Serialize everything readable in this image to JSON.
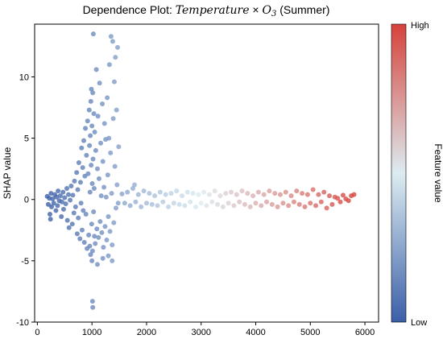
{
  "chart_data": {
    "type": "scatter",
    "title": {
      "prefix": "Dependence Plot: ",
      "math_a": "Temperature",
      "times": " × ",
      "math_b": "O",
      "math_b_sub": "3",
      "suffix": " (Summer)"
    },
    "xlabel": "",
    "ylabel": "SHAP value",
    "xlim": [
      -50,
      6250
    ],
    "ylim": [
      -10,
      14.3
    ],
    "xticks": [
      0,
      1000,
      2000,
      3000,
      4000,
      5000,
      6000
    ],
    "yticks": [
      -10,
      -5,
      0,
      5,
      10
    ],
    "grid": false,
    "colorbar": {
      "label": "Feature value",
      "high_label": "High",
      "low_label": "Low",
      "colormap": [
        "#3b5fa8",
        "#dcecf1",
        "#d6423a"
      ]
    },
    "point_color_encodes": "feature value (low = blue, high = red)",
    "marker_color_alpha": 0.8,
    "points": [
      [
        180,
        0.25
      ],
      [
        200,
        -0.4
      ],
      [
        220,
        0.1
      ],
      [
        230,
        -1.2
      ],
      [
        240,
        -1.6
      ],
      [
        250,
        0.5
      ],
      [
        260,
        -0.6
      ],
      [
        280,
        0.05
      ],
      [
        300,
        -0.3
      ],
      [
        320,
        0.4
      ],
      [
        340,
        -0.9
      ],
      [
        350,
        0.2
      ],
      [
        370,
        -0.5
      ],
      [
        380,
        0.7
      ],
      [
        400,
        -0.1
      ],
      [
        420,
        0.3
      ],
      [
        440,
        -1.4
      ],
      [
        450,
        -0.2
      ],
      [
        470,
        0.6
      ],
      [
        480,
        -0.8
      ],
      [
        500,
        0.15
      ],
      [
        520,
        -0.35
      ],
      [
        540,
        0.9
      ],
      [
        550,
        -1.7
      ],
      [
        570,
        0.4
      ],
      [
        580,
        -2.3
      ],
      [
        600,
        -0.05
      ],
      [
        620,
        1.1
      ],
      [
        640,
        -2.0
      ],
      [
        650,
        0.35
      ],
      [
        670,
        -1.1
      ],
      [
        680,
        1.5
      ],
      [
        700,
        -0.6
      ],
      [
        720,
        2.2
      ],
      [
        730,
        -2.8
      ],
      [
        740,
        0.8
      ],
      [
        750,
        -1.5
      ],
      [
        760,
        3.0
      ],
      [
        780,
        -3.2
      ],
      [
        790,
        1.4
      ],
      [
        800,
        -0.3
      ],
      [
        810,
        4.2
      ],
      [
        820,
        -2.5
      ],
      [
        830,
        2.6
      ],
      [
        840,
        -0.9
      ],
      [
        850,
        4.8
      ],
      [
        860,
        -3.5
      ],
      [
        870,
        1.9
      ],
      [
        880,
        5.8
      ],
      [
        890,
        -1.2
      ],
      [
        900,
        3.6
      ],
      [
        910,
        -4.0
      ],
      [
        920,
        6.4
      ],
      [
        930,
        2.1
      ],
      [
        940,
        -2.9
      ],
      [
        950,
        7.3
      ],
      [
        955,
        4.4
      ],
      [
        960,
        -3.8
      ],
      [
        965,
        0.6
      ],
      [
        970,
        5.2
      ],
      [
        975,
        -4.5
      ],
      [
        980,
        8.0
      ],
      [
        985,
        2.8
      ],
      [
        990,
        9.0
      ],
      [
        995,
        -2.0
      ],
      [
        1000,
        6.0
      ],
      [
        1005,
        1.3
      ],
      [
        1010,
        -4.2
      ],
      [
        1015,
        8.7
      ],
      [
        1020,
        3.3
      ],
      [
        1025,
        13.5
      ],
      [
        1030,
        -1.0
      ],
      [
        1035,
        7.0
      ],
      [
        1040,
        0.9
      ],
      [
        1045,
        -3.0
      ],
      [
        1050,
        5.5
      ],
      [
        1060,
        -3.6
      ],
      [
        1070,
        4.0
      ],
      [
        1080,
        10.6
      ],
      [
        1090,
        -2.4
      ],
      [
        1100,
        2.5
      ],
      [
        1110,
        6.8
      ],
      [
        1120,
        -3.1
      ],
      [
        1130,
        1.7
      ],
      [
        1140,
        9.5
      ],
      [
        1150,
        -1.8
      ],
      [
        1160,
        4.6
      ],
      [
        1170,
        0.3
      ],
      [
        1180,
        -2.7
      ],
      [
        1190,
        7.8
      ],
      [
        1200,
        3.1
      ],
      [
        1210,
        -3.9
      ],
      [
        1220,
        1.0
      ],
      [
        1230,
        6.2
      ],
      [
        1240,
        -2.2
      ],
      [
        1250,
        4.9
      ],
      [
        1260,
        0.2
      ],
      [
        1270,
        -3.3
      ],
      [
        1280,
        8.3
      ],
      [
        1290,
        2.0
      ],
      [
        1300,
        -1.4
      ],
      [
        1310,
        5.0
      ],
      [
        1320,
        11.0
      ],
      [
        1330,
        -2.6
      ],
      [
        1340,
        3.8
      ],
      [
        1350,
        13.3
      ],
      [
        1360,
        0.5
      ],
      [
        1370,
        -3.7
      ],
      [
        1380,
        12.9
      ],
      [
        1390,
        6.6
      ],
      [
        1400,
        -1.9
      ],
      [
        1410,
        9.6
      ],
      [
        1420,
        2.7
      ],
      [
        1430,
        11.6
      ],
      [
        1440,
        -0.7
      ],
      [
        1450,
        7.3
      ],
      [
        1460,
        1.2
      ],
      [
        1470,
        12.4
      ],
      [
        1480,
        -0.3
      ],
      [
        1490,
        4.3
      ],
      [
        1010,
        -8.3
      ],
      [
        1015,
        -8.8
      ],
      [
        1000,
        -5.0
      ],
      [
        1100,
        -5.3
      ],
      [
        1200,
        -4.8
      ],
      [
        1300,
        -4.6
      ],
      [
        1370,
        -5.0
      ],
      [
        1550,
        0.45
      ],
      [
        1600,
        -0.3
      ],
      [
        1650,
        0.6
      ],
      [
        1700,
        -0.5
      ],
      [
        1750,
        0.9
      ],
      [
        1780,
        1.2
      ],
      [
        1800,
        -0.2
      ],
      [
        1850,
        0.4
      ],
      [
        1900,
        -0.6
      ],
      [
        1950,
        0.7
      ],
      [
        2000,
        -0.3
      ],
      [
        2050,
        0.5
      ],
      [
        2100,
        -0.4
      ],
      [
        2150,
        0.3
      ],
      [
        2200,
        -0.5
      ],
      [
        2250,
        0.6
      ],
      [
        2300,
        -0.2
      ],
      [
        2350,
        0.4
      ],
      [
        2400,
        -0.6
      ],
      [
        2450,
        0.5
      ],
      [
        2500,
        -0.3
      ],
      [
        2550,
        0.7
      ],
      [
        2600,
        -0.4
      ],
      [
        2650,
        0.3
      ],
      [
        2700,
        -0.5
      ],
      [
        2750,
        0.6
      ],
      [
        2800,
        -0.2
      ],
      [
        2850,
        0.5
      ],
      [
        2900,
        -0.6
      ],
      [
        2950,
        0.4
      ],
      [
        3000,
        -0.3
      ],
      [
        3050,
        0.6
      ],
      [
        3100,
        -0.5
      ],
      [
        3150,
        0.4
      ],
      [
        3200,
        -0.2
      ],
      [
        3250,
        0.7
      ],
      [
        3300,
        -0.4
      ],
      [
        3350,
        0.3
      ],
      [
        3400,
        -0.6
      ],
      [
        3450,
        0.5
      ],
      [
        3500,
        -0.3
      ],
      [
        3550,
        0.6
      ],
      [
        3600,
        -0.5
      ],
      [
        3650,
        0.4
      ],
      [
        3700,
        -0.2
      ],
      [
        3750,
        0.7
      ],
      [
        3800,
        -0.4
      ],
      [
        3850,
        0.5
      ],
      [
        3900,
        -0.6
      ],
      [
        3950,
        0.3
      ],
      [
        4000,
        -0.3
      ],
      [
        4050,
        0.6
      ],
      [
        4100,
        -0.5
      ],
      [
        4150,
        0.4
      ],
      [
        4200,
        -0.2
      ],
      [
        4250,
        0.7
      ],
      [
        4300,
        -0.4
      ],
      [
        4350,
        0.5
      ],
      [
        4400,
        -0.6
      ],
      [
        4450,
        0.4
      ],
      [
        4500,
        -0.3
      ],
      [
        4550,
        0.6
      ],
      [
        4600,
        -0.5
      ],
      [
        4650,
        0.3
      ],
      [
        4700,
        -0.2
      ],
      [
        4750,
        0.7
      ],
      [
        4800,
        -0.4
      ],
      [
        4850,
        0.5
      ],
      [
        4900,
        -0.6
      ],
      [
        4950,
        0.4
      ],
      [
        5000,
        -0.3
      ],
      [
        5050,
        0.8
      ],
      [
        5100,
        -0.5
      ],
      [
        5150,
        0.4
      ],
      [
        5200,
        -0.2
      ],
      [
        5250,
        0.6
      ],
      [
        5300,
        -0.7
      ],
      [
        5350,
        0.3
      ],
      [
        5400,
        -0.4
      ],
      [
        5450,
        0.2
      ],
      [
        5500,
        0.1
      ],
      [
        5550,
        -0.2
      ],
      [
        5600,
        0.35
      ],
      [
        5650,
        0.05
      ],
      [
        5700,
        -0.1
      ],
      [
        5750,
        0.3
      ],
      [
        5800,
        0.4
      ]
    ]
  }
}
